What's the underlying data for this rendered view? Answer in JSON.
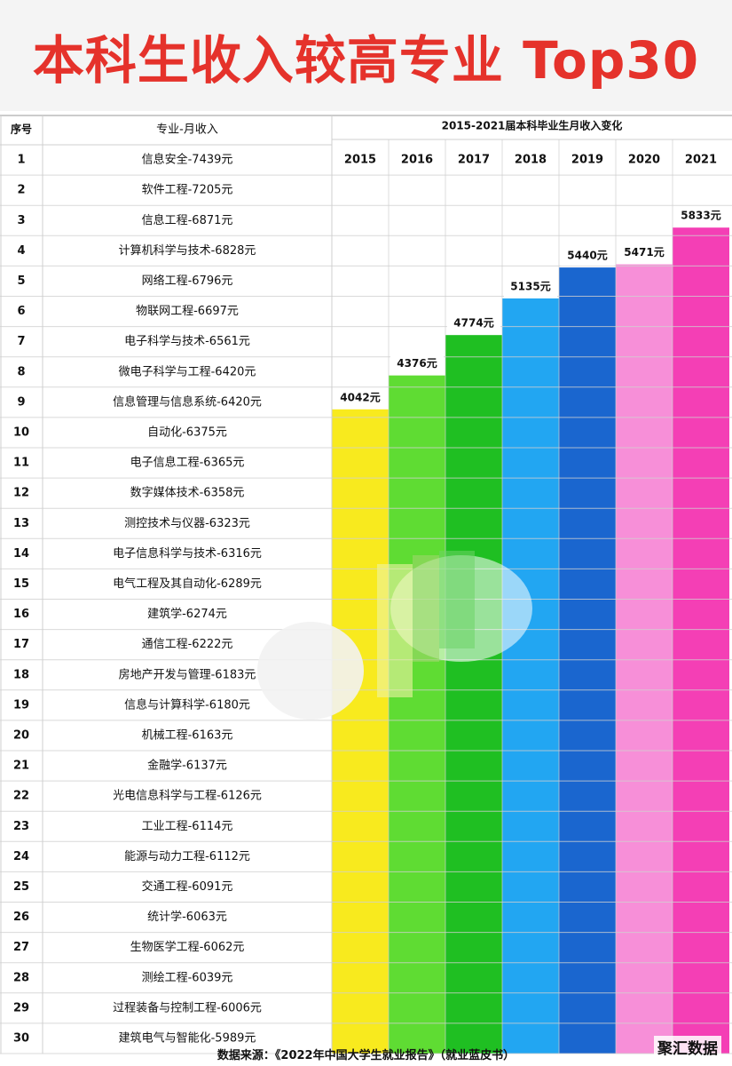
{
  "title": "本科生收入较高专业 Top30",
  "headers": {
    "rank": "序号",
    "major": "专业-月收入",
    "trend": "2015-2021届本科毕业生月收入变化"
  },
  "source": "数据来源：《2022年中国大学生就业报告》（就业蓝皮书）",
  "watermark": "聚汇数据",
  "chart_data": {
    "type": "table",
    "title": "本科生收入较高专业 Top30",
    "years": [
      "2015",
      "2016",
      "2017",
      "2018",
      "2019",
      "2020",
      "2021"
    ],
    "yearly_income": [
      4042,
      4376,
      4774,
      5135,
      5440,
      5471,
      5833
    ],
    "yearly_income_labels": [
      "4042元",
      "4376元",
      "4774元",
      "5135元",
      "5440元",
      "5471元",
      "5833元"
    ],
    "bar_colors": [
      "#f8ea1e",
      "#5fdc33",
      "#1fbf22",
      "#22a6f2",
      "#1a66cf",
      "#f78fd8",
      "#f43fb5"
    ],
    "rows": [
      {
        "rank": "1",
        "major": "信息安全-7439元",
        "income": 7439
      },
      {
        "rank": "2",
        "major": "软件工程-7205元",
        "income": 7205
      },
      {
        "rank": "3",
        "major": "信息工程-6871元",
        "income": 6871
      },
      {
        "rank": "4",
        "major": "计算机科学与技术-6828元",
        "income": 6828
      },
      {
        "rank": "5",
        "major": "网络工程-6796元",
        "income": 6796
      },
      {
        "rank": "6",
        "major": "物联网工程-6697元",
        "income": 6697
      },
      {
        "rank": "7",
        "major": "电子科学与技术-6561元",
        "income": 6561
      },
      {
        "rank": "8",
        "major": "微电子科学与工程-6420元",
        "income": 6420
      },
      {
        "rank": "9",
        "major": "信息管理与信息系统-6420元",
        "income": 6420
      },
      {
        "rank": "10",
        "major": "自动化-6375元",
        "income": 6375
      },
      {
        "rank": "11",
        "major": "电子信息工程-6365元",
        "income": 6365
      },
      {
        "rank": "12",
        "major": "数字媒体技术-6358元",
        "income": 6358
      },
      {
        "rank": "13",
        "major": "测控技术与仪器-6323元",
        "income": 6323
      },
      {
        "rank": "14",
        "major": "电子信息科学与技术-6316元",
        "income": 6316
      },
      {
        "rank": "15",
        "major": "电气工程及其自动化-6289元",
        "income": 6289
      },
      {
        "rank": "16",
        "major": "建筑学-6274元",
        "income": 6274
      },
      {
        "rank": "17",
        "major": "通信工程-6222元",
        "income": 6222
      },
      {
        "rank": "18",
        "major": "房地产开发与管理-6183元",
        "income": 6183
      },
      {
        "rank": "19",
        "major": "信息与计算科学-6180元",
        "income": 6180
      },
      {
        "rank": "20",
        "major": "机械工程-6163元",
        "income": 6163
      },
      {
        "rank": "21",
        "major": "金融学-6137元",
        "income": 6137
      },
      {
        "rank": "22",
        "major": "光电信息科学与工程-6126元",
        "income": 6126
      },
      {
        "rank": "23",
        "major": "工业工程-6114元",
        "income": 6114
      },
      {
        "rank": "24",
        "major": "能源与动力工程-6112元",
        "income": 6112
      },
      {
        "rank": "25",
        "major": "交通工程-6091元",
        "income": 6091
      },
      {
        "rank": "26",
        "major": "统计学-6063元",
        "income": 6063
      },
      {
        "rank": "27",
        "major": "生物医学工程-6062元",
        "income": 6062
      },
      {
        "rank": "28",
        "major": "测绘工程-6039元",
        "income": 6039
      },
      {
        "rank": "29",
        "major": "过程装备与控制工程-6006元",
        "income": 6006
      },
      {
        "rank": "30",
        "major": "建筑电气与智能化-5989元",
        "income": 5989
      }
    ]
  }
}
